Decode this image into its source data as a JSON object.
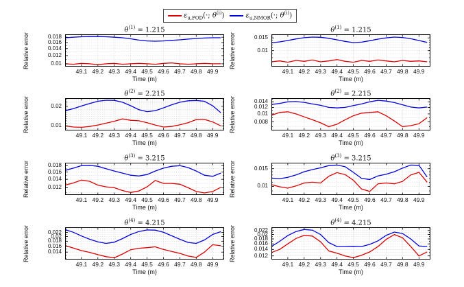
{
  "figure": {
    "ylabel": "Relative error",
    "xlabel": "Time (m)",
    "colors": {
      "pod": "#dd0000",
      "nmor": "#0000dd",
      "grid": "#cccccc",
      "box": "#000000"
    },
    "legend": [
      {
        "color": "#dd0000",
        "eps": "ε",
        "sub": "u,POD",
        "args": "(·; ",
        "theta": "θ",
        "sup": "(i)",
        "close": ")"
      },
      {
        "color": "#0000dd",
        "eps": "ε",
        "sub": "u,NMOR",
        "args": "(·; ",
        "theta": "θ",
        "sup": "(i)",
        "close": ")"
      }
    ]
  },
  "chart_data": [
    {
      "type": "line",
      "position": "row1-left",
      "title": {
        "theta": "θ",
        "sup": "(1)",
        "rest": " = 1.215"
      },
      "xlabel": "Time (m)",
      "ylabel": "Relative error",
      "yscale": "log",
      "xlim": [
        49.0,
        49.97
      ],
      "x": [
        49.0,
        49.05,
        49.1,
        49.15,
        49.2,
        49.25,
        49.3,
        49.35,
        49.4,
        49.45,
        49.5,
        49.55,
        49.6,
        49.65,
        49.7,
        49.75,
        49.8,
        49.85,
        49.9,
        49.95
      ],
      "xticks": [
        49.1,
        49.2,
        49.3,
        49.4,
        49.5,
        49.6,
        49.7,
        49.8,
        49.9
      ],
      "xtick_labels": [
        "49.1",
        "49.2",
        "49.3",
        "49.4",
        "49.5",
        "49.6",
        "49.7",
        "49.8",
        "49.9"
      ],
      "ylim": [
        0.0094,
        0.0192
      ],
      "yticks": [
        0.01,
        0.012,
        0.014,
        0.016,
        0.018
      ],
      "ytick_labels": [
        "0.01",
        "0.012",
        "0.014",
        "0.016",
        "0.018"
      ],
      "series": [
        {
          "name": "eu,NMOR",
          "color": "#0000dd",
          "values": [
            0.0178,
            0.018,
            0.0182,
            0.0183,
            0.0183,
            0.0182,
            0.018,
            0.0178,
            0.0174,
            0.0169,
            0.0166,
            0.0165,
            0.0166,
            0.0168,
            0.017,
            0.0173,
            0.0175,
            0.0177,
            0.0178,
            0.0178
          ]
        },
        {
          "name": "eu,POD",
          "color": "#dd0000",
          "values": [
            0.01,
            0.0099,
            0.0101,
            0.01,
            0.0098,
            0.01,
            0.0101,
            0.0099,
            0.01,
            0.0101,
            0.01,
            0.0099,
            0.0101,
            0.0102,
            0.01,
            0.0099,
            0.01,
            0.0101,
            0.01,
            0.01
          ]
        }
      ]
    },
    {
      "type": "line",
      "position": "row1-right",
      "title": {
        "theta": "θ",
        "sup": "(1)",
        "rest": " = 1.215"
      },
      "xlabel": "Time (m)",
      "ylabel": "Relative error",
      "yscale": "log",
      "xlim": [
        49.0,
        49.97
      ],
      "x": [
        49.0,
        49.05,
        49.1,
        49.15,
        49.2,
        49.25,
        49.3,
        49.35,
        49.4,
        49.45,
        49.5,
        49.55,
        49.6,
        49.65,
        49.7,
        49.75,
        49.8,
        49.85,
        49.9,
        49.95
      ],
      "xticks": [
        49.1,
        49.2,
        49.3,
        49.4,
        49.5,
        49.6,
        49.7,
        49.8,
        49.9
      ],
      "xtick_labels": [
        "49.1",
        "49.2",
        "49.3",
        "49.4",
        "49.5",
        "49.6",
        "49.7",
        "49.8",
        "49.9"
      ],
      "ylim": [
        0.006,
        0.0168
      ],
      "yticks": [
        0.01,
        0.015
      ],
      "ytick_labels": [
        "0.01",
        "0.015"
      ],
      "series": [
        {
          "name": "eu,NMOR",
          "color": "#0000dd",
          "values": [
            0.0128,
            0.0132,
            0.0138,
            0.0145,
            0.0151,
            0.0154,
            0.0153,
            0.0148,
            0.0141,
            0.0134,
            0.0129,
            0.0131,
            0.0137,
            0.0144,
            0.015,
            0.0154,
            0.0152,
            0.0146,
            0.0138,
            0.013
          ]
        },
        {
          "name": "eu,POD",
          "color": "#dd0000",
          "values": [
            0.007,
            0.0072,
            0.0069,
            0.0073,
            0.0071,
            0.0074,
            0.007,
            0.0072,
            0.0075,
            0.0071,
            0.0069,
            0.0073,
            0.0071,
            0.0074,
            0.0072,
            0.007,
            0.0073,
            0.0071,
            0.0072,
            0.007
          ]
        }
      ]
    },
    {
      "type": "line",
      "position": "row2-left",
      "title": {
        "theta": "θ",
        "sup": "(2)",
        "rest": " = 2.215"
      },
      "xlabel": "Time (m)",
      "ylabel": "Relative error",
      "yscale": "log",
      "xlim": [
        49.0,
        49.97
      ],
      "x": [
        49.0,
        49.05,
        49.1,
        49.15,
        49.2,
        49.25,
        49.3,
        49.35,
        49.4,
        49.45,
        49.5,
        49.55,
        49.6,
        49.65,
        49.7,
        49.75,
        49.8,
        49.85,
        49.9,
        49.95
      ],
      "xticks": [
        49.1,
        49.2,
        49.3,
        49.4,
        49.5,
        49.6,
        49.7,
        49.8,
        49.9
      ],
      "xtick_labels": [
        "49.1",
        "49.2",
        "49.3",
        "49.4",
        "49.5",
        "49.6",
        "49.7",
        "49.8",
        "49.9"
      ],
      "ylim": [
        0.0085,
        0.0268
      ],
      "yticks": [
        0.01,
        0.02
      ],
      "ytick_labels": [
        "0.01",
        "0.02"
      ],
      "series": [
        {
          "name": "eu,NMOR",
          "color": "#0000dd",
          "values": [
            0.0172,
            0.0185,
            0.0203,
            0.0222,
            0.024,
            0.0249,
            0.0248,
            0.0232,
            0.0205,
            0.0178,
            0.0166,
            0.0172,
            0.019,
            0.0212,
            0.0232,
            0.0244,
            0.0247,
            0.024,
            0.0205,
            0.016
          ]
        },
        {
          "name": "eu,POD",
          "color": "#dd0000",
          "values": [
            0.01,
            0.0096,
            0.0095,
            0.0098,
            0.0103,
            0.011,
            0.0118,
            0.0128,
            0.0122,
            0.012,
            0.0112,
            0.0103,
            0.0096,
            0.0098,
            0.0104,
            0.0112,
            0.0125,
            0.0126,
            0.0115,
            0.01
          ]
        }
      ]
    },
    {
      "type": "line",
      "position": "row2-right",
      "title": {
        "theta": "θ",
        "sup": "(2)",
        "rest": " = 2.215"
      },
      "xlabel": "Time (m)",
      "ylabel": "Relative error",
      "yscale": "log",
      "xlim": [
        49.0,
        49.97
      ],
      "x": [
        49.0,
        49.05,
        49.1,
        49.15,
        49.2,
        49.25,
        49.3,
        49.35,
        49.4,
        49.45,
        49.5,
        49.55,
        49.6,
        49.65,
        49.7,
        49.75,
        49.8,
        49.85,
        49.9,
        49.95
      ],
      "xticks": [
        49.1,
        49.2,
        49.3,
        49.4,
        49.5,
        49.6,
        49.7,
        49.8,
        49.9
      ],
      "xtick_labels": [
        "49.1",
        "49.2",
        "49.3",
        "49.4",
        "49.5",
        "49.6",
        "49.7",
        "49.8",
        "49.9"
      ],
      "ylim": [
        0.0063,
        0.0155
      ],
      "yticks": [
        0.008,
        0.01,
        0.012,
        0.014
      ],
      "ytick_labels": [
        "0.008",
        "0.01",
        "0.012",
        "0.014"
      ],
      "series": [
        {
          "name": "eu,NMOR",
          "color": "#0000dd",
          "values": [
            0.013,
            0.0134,
            0.014,
            0.0141,
            0.0138,
            0.0132,
            0.0127,
            0.012,
            0.0118,
            0.012,
            0.0126,
            0.0132,
            0.014,
            0.0146,
            0.0143,
            0.0137,
            0.0129,
            0.0121,
            0.0118,
            0.0121
          ]
        },
        {
          "name": "eu,POD",
          "color": "#dd0000",
          "values": [
            0.0096,
            0.0104,
            0.0106,
            0.01,
            0.0092,
            0.0085,
            0.0078,
            0.007,
            0.0075,
            0.0085,
            0.0095,
            0.0102,
            0.0104,
            0.0106,
            0.0095,
            0.0082,
            0.007,
            0.0072,
            0.0076,
            0.009
          ]
        }
      ]
    },
    {
      "type": "line",
      "position": "row3-left",
      "title": {
        "theta": "θ",
        "sup": "(3)",
        "rest": " = 3.215"
      },
      "xlabel": "Time (m)",
      "ylabel": "Relative error",
      "yscale": "log",
      "xlim": [
        49.0,
        49.97
      ],
      "x": [
        49.0,
        49.05,
        49.1,
        49.15,
        49.2,
        49.25,
        49.3,
        49.35,
        49.4,
        49.45,
        49.5,
        49.55,
        49.6,
        49.65,
        49.7,
        49.75,
        49.8,
        49.85,
        49.9,
        49.95
      ],
      "xticks": [
        49.1,
        49.2,
        49.3,
        49.4,
        49.5,
        49.6,
        49.7,
        49.8,
        49.9
      ],
      "xtick_labels": [
        "49.1",
        "49.2",
        "49.3",
        "49.4",
        "49.5",
        "49.6",
        "49.7",
        "49.8",
        "49.9"
      ],
      "ylim": [
        0.0105,
        0.019
      ],
      "yticks": [
        0.012,
        0.014,
        0.016,
        0.018
      ],
      "ytick_labels": [
        "0.012",
        "0.014",
        "0.016",
        "0.018"
      ],
      "series": [
        {
          "name": "eu,NMOR",
          "color": "#0000dd",
          "values": [
            0.0165,
            0.0172,
            0.018,
            0.0181,
            0.0178,
            0.017,
            0.0163,
            0.0157,
            0.0151,
            0.0149,
            0.0153,
            0.0163,
            0.0172,
            0.0178,
            0.018,
            0.0174,
            0.0163,
            0.0151,
            0.0148,
            0.0157
          ]
        },
        {
          "name": "eu,POD",
          "color": "#dd0000",
          "values": [
            0.0126,
            0.0131,
            0.0138,
            0.0135,
            0.0126,
            0.0122,
            0.012,
            0.0114,
            0.011,
            0.0113,
            0.0122,
            0.0137,
            0.013,
            0.013,
            0.0128,
            0.012,
            0.0112,
            0.0109,
            0.0112,
            0.0121
          ]
        }
      ]
    },
    {
      "type": "line",
      "position": "row3-right",
      "title": {
        "theta": "θ",
        "sup": "(3)",
        "rest": " = 3.215"
      },
      "xlabel": "Time (m)",
      "ylabel": "Relative error",
      "yscale": "log",
      "xlim": [
        49.0,
        49.97
      ],
      "x": [
        49.0,
        49.05,
        49.1,
        49.15,
        49.2,
        49.25,
        49.3,
        49.35,
        49.4,
        49.45,
        49.5,
        49.55,
        49.6,
        49.65,
        49.7,
        49.75,
        49.8,
        49.85,
        49.9,
        49.95
      ],
      "xticks": [
        49.1,
        49.2,
        49.3,
        49.4,
        49.5,
        49.6,
        49.7,
        49.8,
        49.9
      ],
      "xtick_labels": [
        "49.1",
        "49.2",
        "49.3",
        "49.4",
        "49.5",
        "49.6",
        "49.7",
        "49.8",
        "49.9"
      ],
      "ylim": [
        0.0082,
        0.0172
      ],
      "yticks": [
        0.01,
        0.015
      ],
      "ytick_labels": [
        "0.01",
        "0.015"
      ],
      "series": [
        {
          "name": "eu,NMOR",
          "color": "#0000dd",
          "values": [
            0.0121,
            0.0119,
            0.0123,
            0.013,
            0.014,
            0.0147,
            0.0153,
            0.0161,
            0.0163,
            0.0157,
            0.0138,
            0.012,
            0.0117,
            0.0127,
            0.0132,
            0.014,
            0.0152,
            0.0163,
            0.0162,
            0.0124
          ]
        },
        {
          "name": "eu,POD",
          "color": "#dd0000",
          "values": [
            0.0104,
            0.0099,
            0.0096,
            0.0101,
            0.0108,
            0.011,
            0.0108,
            0.0126,
            0.0137,
            0.0131,
            0.0115,
            0.0094,
            0.0089,
            0.0106,
            0.0108,
            0.0106,
            0.0112,
            0.013,
            0.0138,
            0.011
          ]
        }
      ]
    },
    {
      "type": "line",
      "position": "row4-left",
      "title": {
        "theta": "θ",
        "sup": "(4)",
        "rest": " = 4.215"
      },
      "xlabel": "Time (m)",
      "ylabel": "Relative error",
      "yscale": "log",
      "xlim": [
        49.0,
        49.97
      ],
      "x": [
        49.0,
        49.05,
        49.1,
        49.15,
        49.2,
        49.25,
        49.3,
        49.35,
        49.4,
        49.45,
        49.5,
        49.55,
        49.6,
        49.65,
        49.7,
        49.75,
        49.8,
        49.85,
        49.9,
        49.95
      ],
      "xticks": [
        49.1,
        49.2,
        49.3,
        49.4,
        49.5,
        49.6,
        49.7,
        49.8,
        49.9
      ],
      "xtick_labels": [
        "49.1",
        "49.2",
        "49.3",
        "49.4",
        "49.5",
        "49.6",
        "49.7",
        "49.8",
        "49.9"
      ],
      "ylim": [
        0.0118,
        0.0248
      ],
      "yticks": [
        0.014,
        0.016,
        0.018,
        0.02,
        0.022
      ],
      "ytick_labels": [
        "0.014",
        "0.016",
        "0.018",
        "0.02",
        "0.022"
      ],
      "series": [
        {
          "name": "eu,NMOR",
          "color": "#0000dd",
          "values": [
            0.0235,
            0.0221,
            0.0203,
            0.0188,
            0.0177,
            0.0171,
            0.0176,
            0.0191,
            0.021,
            0.0225,
            0.0233,
            0.0232,
            0.0221,
            0.0204,
            0.0188,
            0.0175,
            0.0171,
            0.0185,
            0.021,
            0.0224
          ]
        },
        {
          "name": "eu,POD",
          "color": "#dd0000",
          "values": [
            0.0163,
            0.0154,
            0.0145,
            0.0139,
            0.0132,
            0.0126,
            0.0123,
            0.0134,
            0.0148,
            0.0153,
            0.0155,
            0.0158,
            0.0149,
            0.0142,
            0.0136,
            0.0128,
            0.0124,
            0.014,
            0.0166,
            0.0162
          ]
        }
      ]
    },
    {
      "type": "line",
      "position": "row4-right",
      "title": {
        "theta": "θ",
        "sup": "(4)",
        "rest": " = 4.215"
      },
      "xlabel": "Time (m)",
      "ylabel": "Relative error",
      "yscale": "log",
      "xlim": [
        49.0,
        49.97
      ],
      "x": [
        49.0,
        49.05,
        49.1,
        49.15,
        49.2,
        49.25,
        49.3,
        49.35,
        49.4,
        49.45,
        49.5,
        49.55,
        49.6,
        49.65,
        49.7,
        49.75,
        49.8,
        49.85,
        49.9,
        49.95
      ],
      "xticks": [
        49.1,
        49.2,
        49.3,
        49.4,
        49.5,
        49.6,
        49.7,
        49.8,
        49.9
      ],
      "xtick_labels": [
        "49.1",
        "49.2",
        "49.3",
        "49.4",
        "49.5",
        "49.6",
        "49.7",
        "49.8",
        "49.9"
      ],
      "ylim": [
        0.011,
        0.0238
      ],
      "yticks": [
        0.012,
        0.014,
        0.016,
        0.018,
        0.02,
        0.022
      ],
      "ytick_labels": [
        "0.012",
        "0.014",
        "0.016",
        "0.018",
        "0.02",
        "0.022"
      ],
      "series": [
        {
          "name": "eu,NMOR",
          "color": "#0000dd",
          "values": [
            0.015,
            0.017,
            0.0195,
            0.0215,
            0.0226,
            0.0222,
            0.02,
            0.0165,
            0.015,
            0.015,
            0.0151,
            0.015,
            0.0158,
            0.0172,
            0.0196,
            0.0212,
            0.0205,
            0.018,
            0.0152,
            0.015
          ]
        },
        {
          "name": "eu,POD",
          "color": "#dd0000",
          "values": [
            0.013,
            0.014,
            0.016,
            0.0182,
            0.0196,
            0.0193,
            0.0168,
            0.0135,
            0.0128,
            0.012,
            0.0115,
            0.0122,
            0.0132,
            0.015,
            0.0178,
            0.02,
            0.0185,
            0.015,
            0.012,
            0.0132
          ]
        }
      ]
    }
  ]
}
